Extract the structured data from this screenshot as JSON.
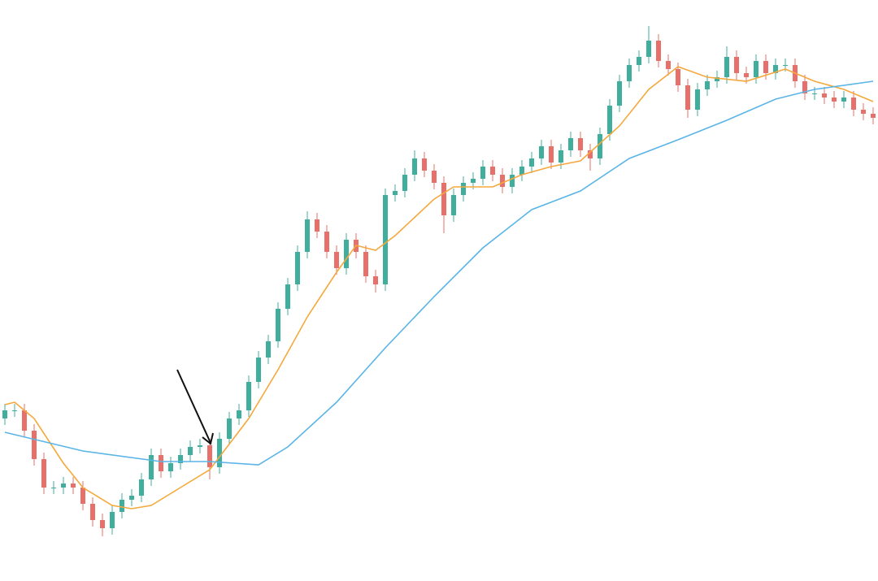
{
  "chart_data": {
    "type": "candlestick",
    "xlim": [
      -0.5,
      89.5
    ],
    "ylim": [
      0,
      715
    ],
    "up_color": "#3fae9c",
    "down_color": "#e8706a",
    "x": [
      0,
      1,
      2,
      3,
      4,
      5,
      6,
      7,
      8,
      9,
      10,
      11,
      12,
      13,
      14,
      15,
      16,
      17,
      18,
      19,
      20,
      21,
      22,
      23,
      24,
      25,
      26,
      27,
      28,
      29,
      30,
      31,
      32,
      33,
      34,
      35,
      36,
      37,
      38,
      39,
      40,
      41,
      42,
      43,
      44,
      45,
      46,
      47,
      48,
      49,
      50,
      51,
      52,
      53,
      54,
      55,
      56,
      57,
      58,
      59,
      60,
      61,
      62,
      63,
      64,
      65,
      66,
      67,
      68,
      69,
      70,
      71,
      72,
      73,
      74,
      75,
      76,
      77,
      78,
      79,
      80,
      81,
      82,
      83,
      84,
      85,
      86,
      87,
      88,
      89
    ],
    "open": [
      200,
      210,
      210,
      185,
      150,
      115,
      115,
      120,
      115,
      95,
      75,
      65,
      85,
      100,
      105,
      125,
      155,
      135,
      145,
      155,
      165,
      167,
      140,
      175,
      200,
      210,
      245,
      275,
      295,
      335,
      365,
      405,
      445,
      430,
      405,
      385,
      420,
      405,
      375,
      365,
      475,
      480,
      500,
      520,
      505,
      490,
      450,
      475,
      490,
      495,
      510,
      500,
      485,
      500,
      510,
      520,
      535,
      515,
      530,
      545,
      530,
      520,
      550,
      585,
      615,
      635,
      645,
      665,
      640,
      630,
      610,
      580,
      605,
      615,
      620,
      645,
      625,
      620,
      640,
      625,
      635,
      635,
      615,
      600,
      600,
      595,
      590,
      595,
      580,
      575
    ],
    "high": [
      218,
      218,
      218,
      193,
      158,
      123,
      128,
      128,
      123,
      103,
      83,
      93,
      108,
      113,
      133,
      163,
      163,
      153,
      163,
      173,
      175,
      175,
      183,
      208,
      218,
      253,
      283,
      303,
      343,
      373,
      413,
      455,
      453,
      438,
      413,
      428,
      428,
      413,
      383,
      483,
      488,
      508,
      530,
      528,
      513,
      498,
      483,
      498,
      503,
      518,
      518,
      508,
      508,
      518,
      528,
      543,
      543,
      538,
      553,
      553,
      538,
      558,
      593,
      623,
      643,
      653,
      683,
      673,
      648,
      638,
      618,
      613,
      623,
      628,
      658,
      653,
      633,
      648,
      648,
      643,
      643,
      643,
      623,
      608,
      608,
      603,
      603,
      603,
      588,
      583
    ],
    "low": [
      192,
      202,
      177,
      142,
      107,
      107,
      107,
      107,
      87,
      67,
      55,
      57,
      77,
      92,
      97,
      117,
      127,
      127,
      137,
      147,
      157,
      125,
      132,
      167,
      192,
      202,
      237,
      267,
      287,
      327,
      357,
      397,
      422,
      397,
      377,
      377,
      397,
      367,
      355,
      357,
      467,
      472,
      492,
      497,
      482,
      428,
      442,
      467,
      482,
      487,
      492,
      477,
      477,
      492,
      502,
      512,
      507,
      507,
      522,
      522,
      505,
      512,
      542,
      577,
      607,
      627,
      637,
      632,
      622,
      602,
      570,
      572,
      597,
      607,
      612,
      617,
      612,
      612,
      617,
      617,
      627,
      607,
      592,
      592,
      587,
      582,
      582,
      572,
      567,
      562
    ],
    "close": [
      210,
      210,
      185,
      150,
      115,
      115,
      120,
      115,
      95,
      75,
      65,
      85,
      100,
      105,
      125,
      155,
      135,
      145,
      155,
      165,
      167,
      140,
      175,
      200,
      210,
      245,
      275,
      295,
      335,
      365,
      405,
      445,
      430,
      405,
      385,
      420,
      405,
      375,
      365,
      475,
      480,
      500,
      520,
      505,
      490,
      450,
      475,
      490,
      495,
      510,
      500,
      485,
      500,
      510,
      520,
      535,
      515,
      530,
      545,
      530,
      520,
      550,
      585,
      615,
      635,
      645,
      665,
      640,
      630,
      610,
      580,
      605,
      615,
      620,
      645,
      625,
      620,
      640,
      625,
      635,
      635,
      615,
      600,
      600,
      595,
      590,
      595,
      580,
      575,
      570
    ],
    "lines": [
      {
        "color": "#f5a83c",
        "x": [
          0,
          1,
          3,
          6,
          8,
          11,
          13,
          15,
          18,
          21,
          25,
          28,
          31,
          34,
          36,
          38,
          40,
          44,
          46,
          50,
          53,
          56,
          59,
          63,
          66,
          69,
          72,
          76,
          80,
          83,
          86,
          89
        ],
        "values": [
          217,
          220,
          200,
          145,
          115,
          93,
          89,
          93,
          115,
          137,
          200,
          260,
          325,
          380,
          413,
          407,
          425,
          470,
          485,
          485,
          500,
          510,
          517,
          560,
          605,
          633,
          620,
          615,
          630,
          615,
          605,
          590
        ]
      },
      {
        "color": "#5ab4e6",
        "x": [
          0,
          8,
          16,
          21,
          26,
          29,
          34,
          39,
          44,
          49,
          54,
          59,
          64,
          69,
          74,
          79,
          83,
          89
        ],
        "values": [
          183,
          160,
          147,
          147,
          143,
          165,
          220,
          287,
          350,
          410,
          457,
          480,
          520,
          543,
          567,
          593,
          605,
          615
        ]
      }
    ]
  }
}
